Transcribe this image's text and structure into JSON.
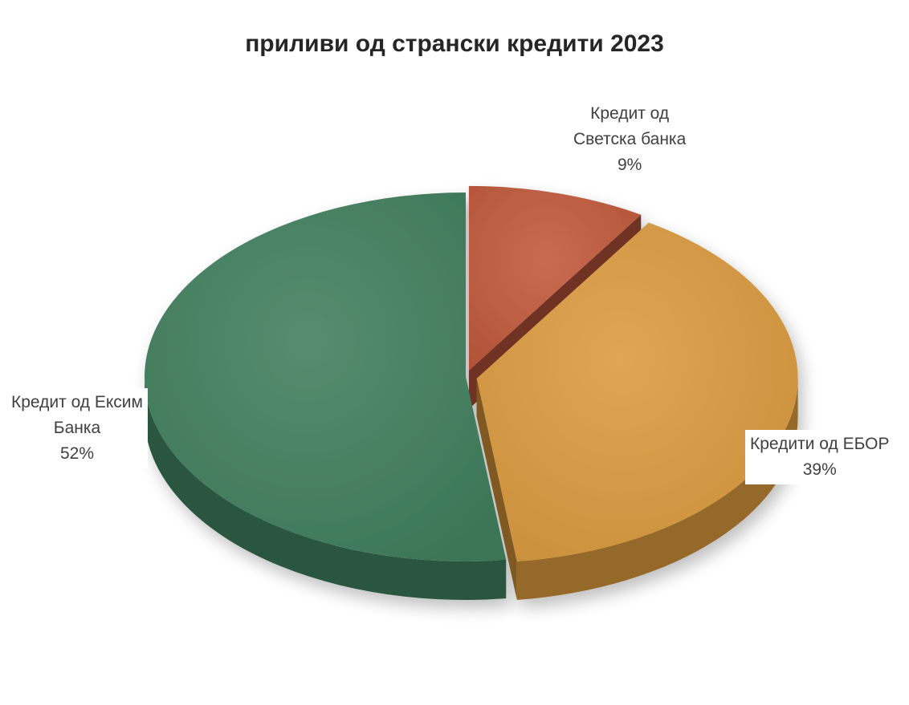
{
  "chart_data": {
    "type": "pie",
    "title": "приливи од странски кредити 2023",
    "legend": "none",
    "slices": [
      {
        "label_lines": [
          "Кредит од",
          "Светска банка"
        ],
        "value": 9,
        "value_label": "9%",
        "color": "#C0583A",
        "exploded": true
      },
      {
        "label_lines": [
          "Кредити од ЕБОР"
        ],
        "value": 39,
        "value_label": "39%",
        "color": "#DB9A3E",
        "exploded": true
      },
      {
        "label_lines": [
          "Кредит од Ексим",
          "Банка"
        ],
        "value": 52,
        "value_label": "52%",
        "color": "#3F7E5C",
        "exploded": false
      }
    ]
  }
}
